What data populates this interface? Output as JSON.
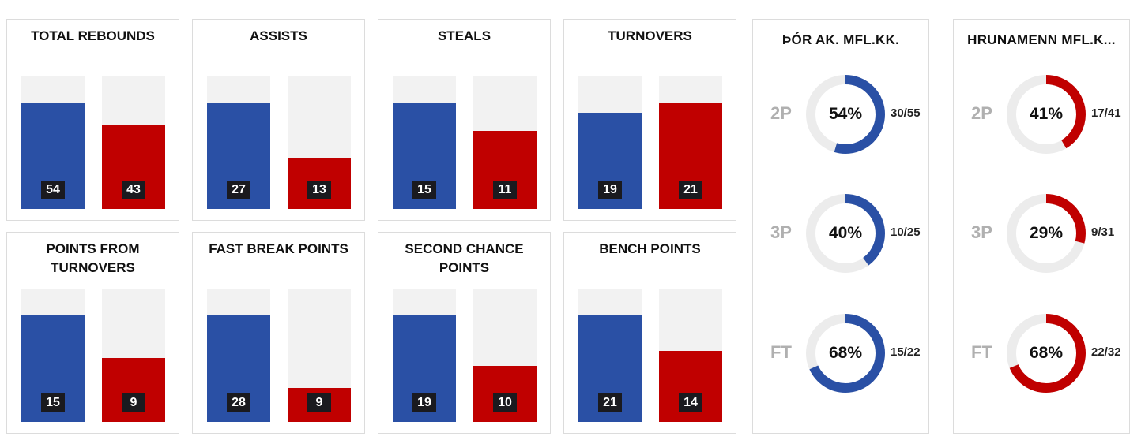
{
  "colors": {
    "home": "#2a50a5",
    "away": "#c00000",
    "track": "#f2f2f2",
    "ring_track": "#ececec"
  },
  "chart_data": [
    {
      "type": "bar",
      "title": "TOTAL REBOUNDS",
      "values": [
        54,
        43
      ]
    },
    {
      "type": "bar",
      "title": "ASSISTS",
      "values": [
        27,
        13
      ]
    },
    {
      "type": "bar",
      "title": "STEALS",
      "values": [
        15,
        11
      ]
    },
    {
      "type": "bar",
      "title": "TURNOVERS",
      "values": [
        19,
        21
      ]
    },
    {
      "type": "bar",
      "title": "POINTS FROM\nTURNOVERS",
      "values": [
        15,
        9
      ]
    },
    {
      "type": "bar",
      "title": "FAST BREAK POINTS",
      "values": [
        28,
        9
      ]
    },
    {
      "type": "bar",
      "title": "SECOND CHANCE\nPOINTS",
      "values": [
        19,
        10
      ]
    },
    {
      "type": "bar",
      "title": "BENCH POINTS",
      "values": [
        21,
        14
      ]
    },
    {
      "type": "pie",
      "title": "ÞÓR AK. MFL.KK.",
      "team": "home",
      "shots": [
        {
          "label": "2P",
          "pct": "54%",
          "made": 30,
          "att": 55,
          "made_att": "30/55"
        },
        {
          "label": "3P",
          "pct": "40%",
          "made": 10,
          "att": 25,
          "made_att": "10/25"
        },
        {
          "label": "FT",
          "pct": "68%",
          "made": 15,
          "att": 22,
          "made_att": "15/22"
        }
      ]
    },
    {
      "type": "pie",
      "title": "HRUNAMENN MFL.K...",
      "team": "away",
      "shots": [
        {
          "label": "2P",
          "pct": "41%",
          "made": 17,
          "att": 41,
          "made_att": "17/41"
        },
        {
          "label": "3P",
          "pct": "29%",
          "made": 9,
          "att": 31,
          "made_att": "9/31"
        },
        {
          "label": "FT",
          "pct": "68%",
          "made": 22,
          "att": 32,
          "made_att": "22/32"
        }
      ]
    }
  ]
}
